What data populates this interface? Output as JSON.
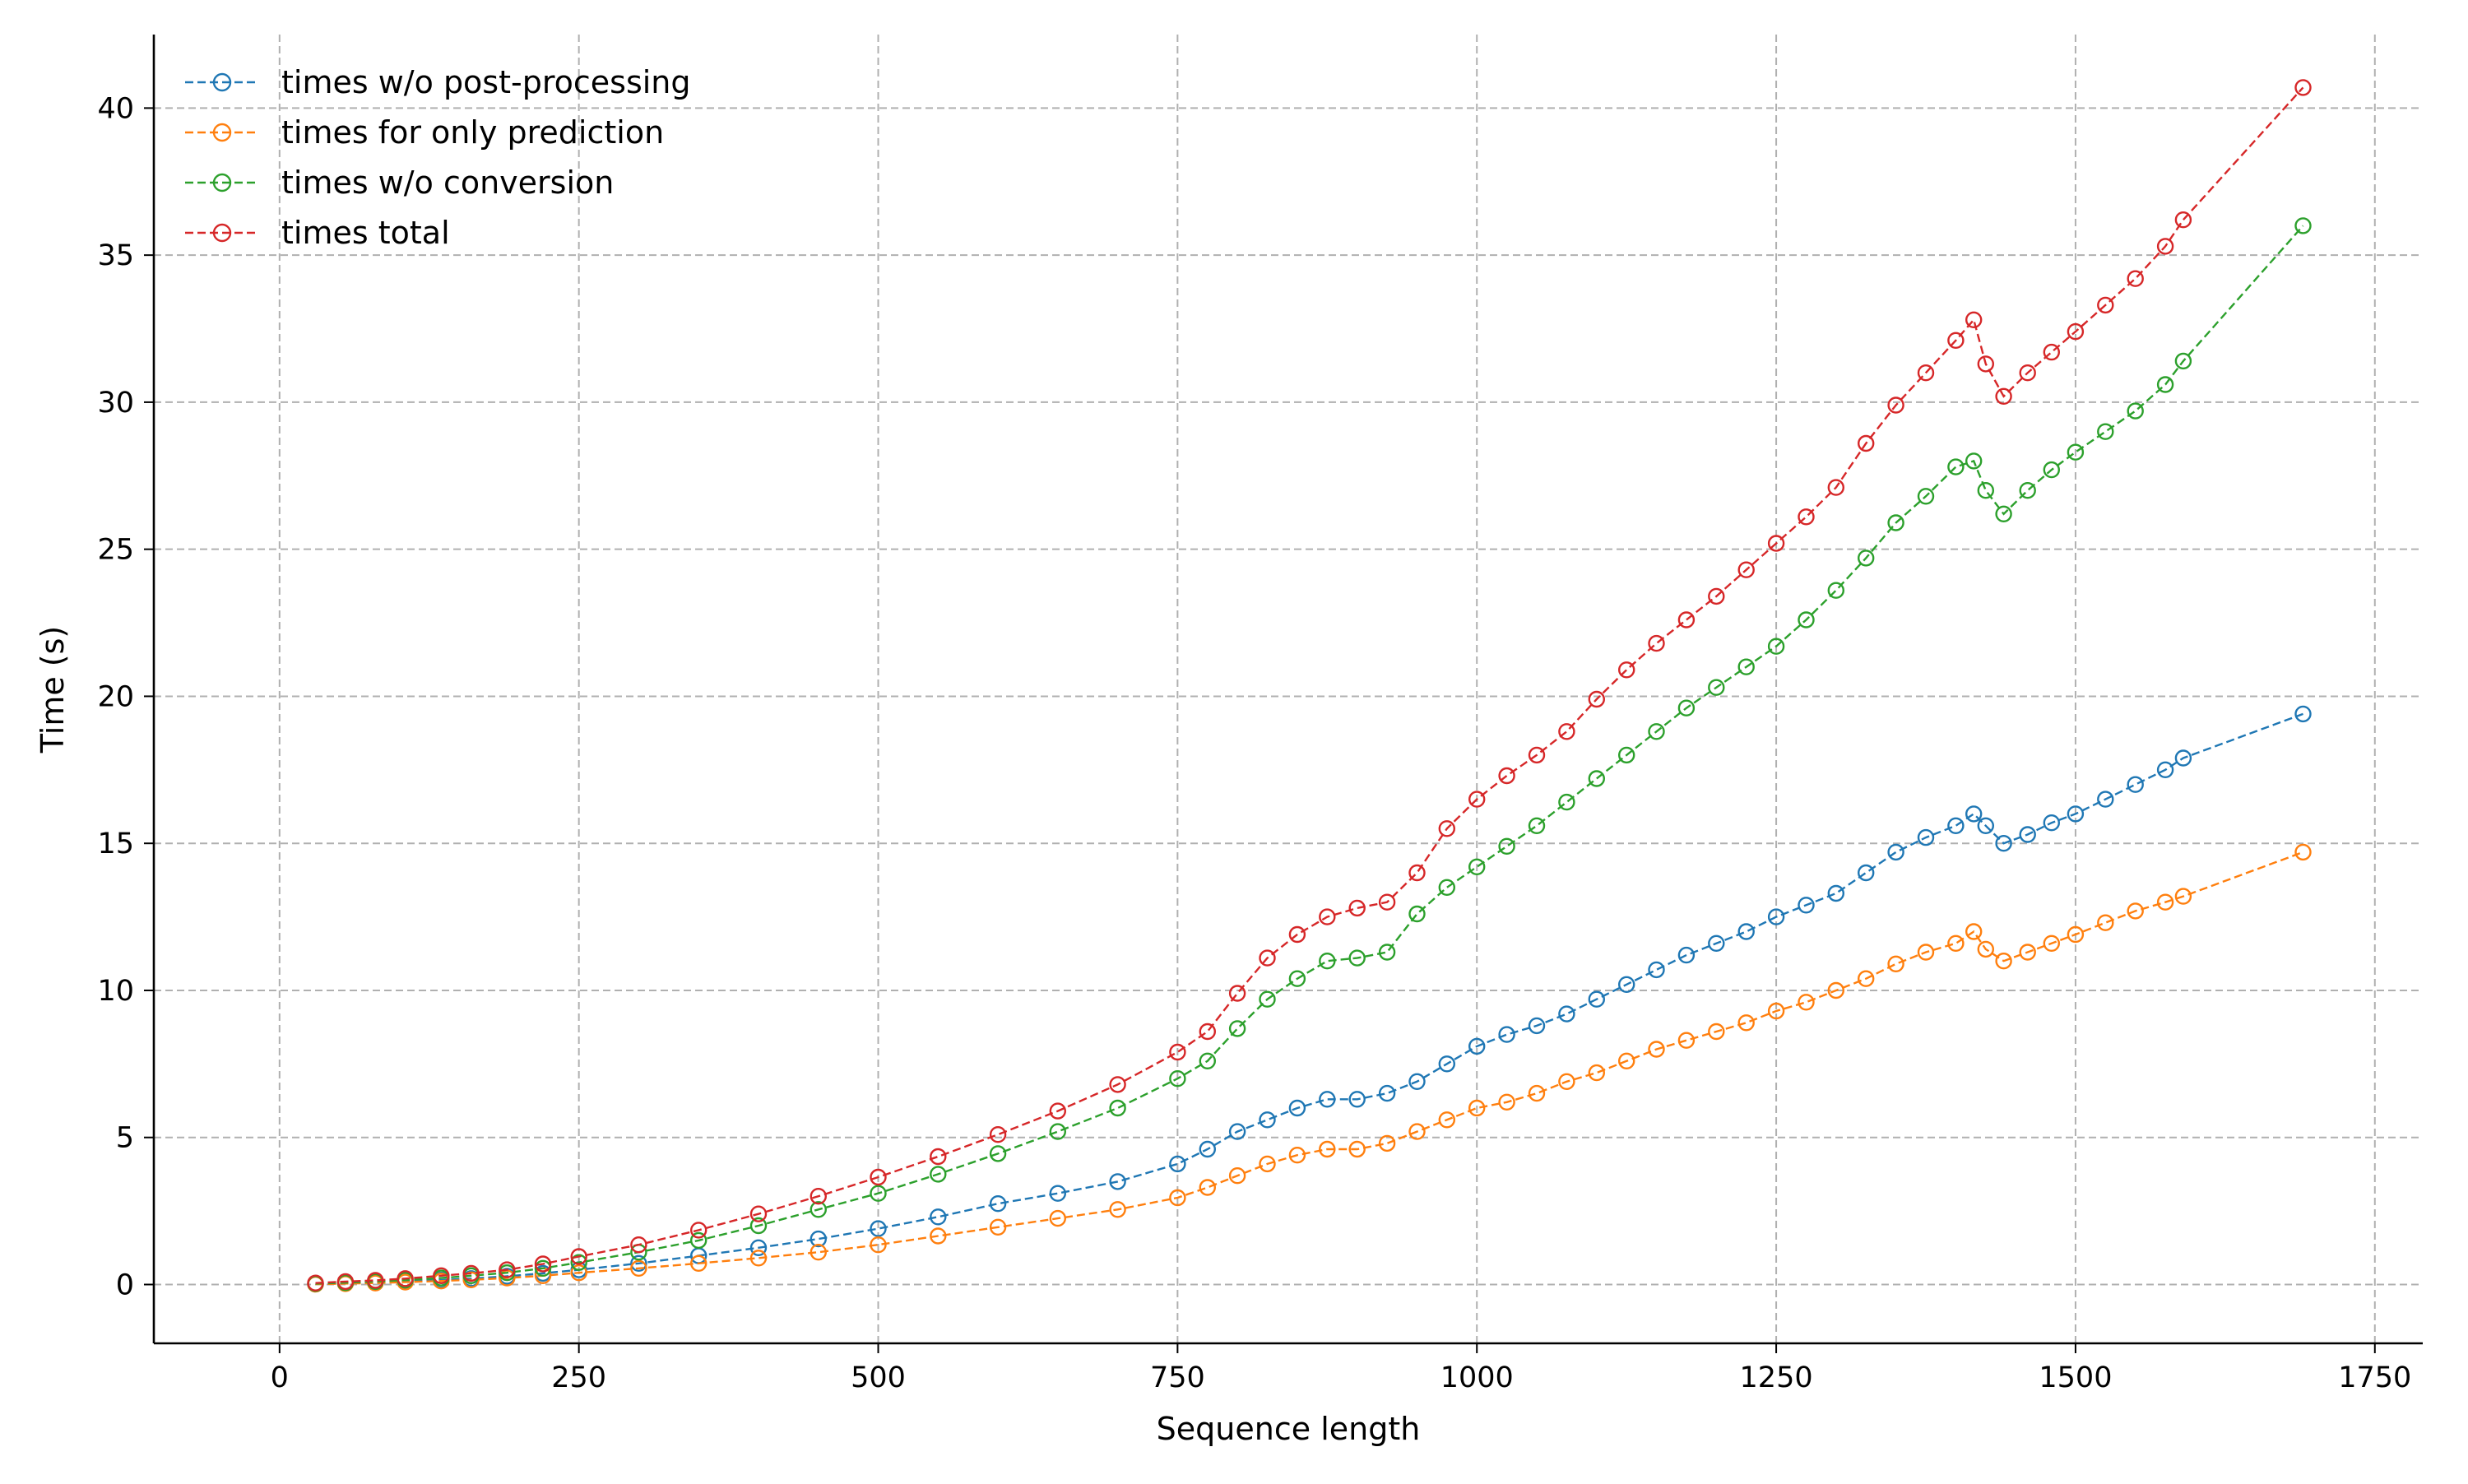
{
  "chart_data": {
    "type": "line",
    "title": "",
    "xlabel": "Sequence length",
    "ylabel": "Time (s)",
    "xlim": [
      -105,
      1790
    ],
    "ylim": [
      -2,
      42.5
    ],
    "x_ticks": [
      0,
      250,
      500,
      750,
      1000,
      1250,
      1500,
      1750
    ],
    "y_ticks": [
      0,
      5,
      10,
      15,
      20,
      25,
      30,
      35,
      40
    ],
    "x_tick_labels": [
      "0",
      "250",
      "500",
      "750",
      "1000",
      "1250",
      "1500",
      "1750"
    ],
    "y_tick_labels": [
      "0",
      "5",
      "10",
      "15",
      "20",
      "25",
      "30",
      "35",
      "40"
    ],
    "grid": true,
    "legend_position": "top-left",
    "marker": "open-circle",
    "line_style": "dashed",
    "x": [
      30,
      55,
      80,
      105,
      135,
      160,
      190,
      220,
      250,
      300,
      350,
      400,
      450,
      500,
      550,
      600,
      650,
      700,
      750,
      775,
      800,
      825,
      850,
      875,
      900,
      925,
      950,
      975,
      1000,
      1025,
      1050,
      1075,
      1100,
      1125,
      1150,
      1175,
      1200,
      1225,
      1250,
      1275,
      1300,
      1325,
      1350,
      1375,
      1400,
      1415,
      1425,
      1440,
      1460,
      1480,
      1500,
      1525,
      1550,
      1575,
      1590,
      1690
    ],
    "series": [
      {
        "name": "times w/o post-processing",
        "color": "#1f77b4",
        "values": [
          0.02,
          0.04,
          0.07,
          0.1,
          0.15,
          0.2,
          0.28,
          0.38,
          0.5,
          0.72,
          0.98,
          1.25,
          1.55,
          1.9,
          2.3,
          2.75,
          3.1,
          3.5,
          4.1,
          4.6,
          5.2,
          5.6,
          6.0,
          6.3,
          6.3,
          6.5,
          6.9,
          7.5,
          8.1,
          8.5,
          8.8,
          9.2,
          9.7,
          10.2,
          10.7,
          11.2,
          11.6,
          12.0,
          12.5,
          12.9,
          13.3,
          14.0,
          14.7,
          15.2,
          15.6,
          16.0,
          15.6,
          15.0,
          15.3,
          15.7,
          16.0,
          16.5,
          17.0,
          17.5,
          17.9,
          19.4
        ]
      },
      {
        "name": "times for only prediction",
        "color": "#ff7f0e",
        "values": [
          0.01,
          0.03,
          0.05,
          0.08,
          0.12,
          0.16,
          0.22,
          0.3,
          0.4,
          0.55,
          0.72,
          0.9,
          1.1,
          1.35,
          1.65,
          1.95,
          2.25,
          2.55,
          2.95,
          3.3,
          3.7,
          4.1,
          4.4,
          4.6,
          4.6,
          4.8,
          5.2,
          5.6,
          6.0,
          6.2,
          6.5,
          6.9,
          7.2,
          7.6,
          8.0,
          8.3,
          8.6,
          8.9,
          9.3,
          9.6,
          10.0,
          10.4,
          10.9,
          11.3,
          11.6,
          12.0,
          11.4,
          11.0,
          11.3,
          11.6,
          11.9,
          12.3,
          12.7,
          13.0,
          13.2,
          14.7
        ]
      },
      {
        "name": "times w/o conversion",
        "color": "#2ca02c",
        "values": [
          0.03,
          0.06,
          0.1,
          0.15,
          0.22,
          0.3,
          0.4,
          0.55,
          0.75,
          1.1,
          1.5,
          2.0,
          2.55,
          3.1,
          3.75,
          4.45,
          5.2,
          6.0,
          7.0,
          7.6,
          8.7,
          9.7,
          10.4,
          11.0,
          11.1,
          11.3,
          12.6,
          13.5,
          14.2,
          14.9,
          15.6,
          16.4,
          17.2,
          18.0,
          18.8,
          19.6,
          20.3,
          21.0,
          21.7,
          22.6,
          23.6,
          24.7,
          25.9,
          26.8,
          27.8,
          28.0,
          27.0,
          26.2,
          27.0,
          27.7,
          28.3,
          29.0,
          29.7,
          30.6,
          31.4,
          36.0
        ]
      },
      {
        "name": "times total",
        "color": "#d62728",
        "values": [
          0.05,
          0.1,
          0.14,
          0.2,
          0.3,
          0.38,
          0.5,
          0.7,
          0.95,
          1.35,
          1.85,
          2.4,
          3.0,
          3.65,
          4.35,
          5.1,
          5.9,
          6.8,
          7.9,
          8.6,
          9.9,
          11.1,
          11.9,
          12.5,
          12.8,
          13.0,
          14.0,
          15.5,
          16.5,
          17.3,
          18.0,
          18.8,
          19.9,
          20.9,
          21.8,
          22.6,
          23.4,
          24.3,
          25.2,
          26.1,
          27.1,
          28.6,
          29.9,
          31.0,
          32.1,
          32.8,
          31.3,
          30.2,
          31.0,
          31.7,
          32.4,
          33.3,
          34.2,
          35.3,
          36.2,
          40.7
        ]
      }
    ]
  }
}
